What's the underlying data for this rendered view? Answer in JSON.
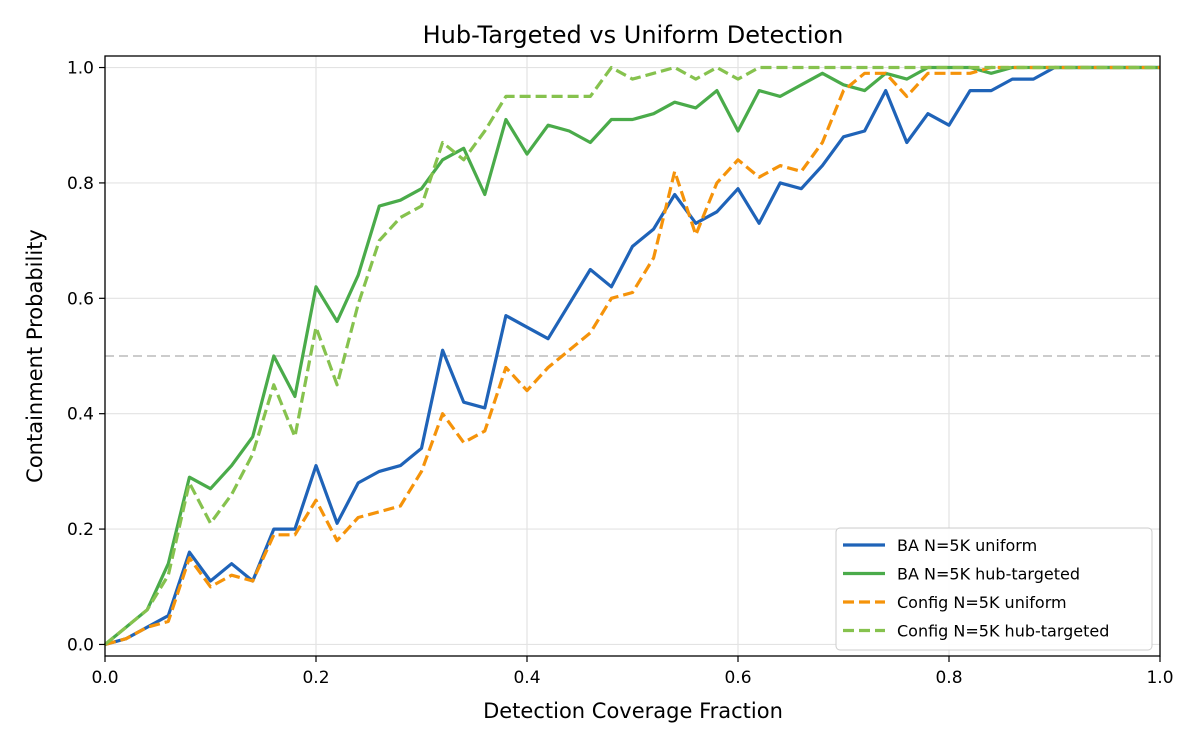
{
  "chart_data": {
    "type": "line",
    "title": "Hub-Targeted vs Uniform Detection",
    "xlabel": "Detection Coverage Fraction",
    "ylabel": "Containment Probability",
    "xlim": [
      0,
      1
    ],
    "ylim": [
      -0.02,
      1.02
    ],
    "xticks": [
      0.0,
      0.2,
      0.4,
      0.6,
      0.8,
      1.0
    ],
    "yticks": [
      0.0,
      0.2,
      0.4,
      0.6,
      0.8,
      1.0
    ],
    "xtick_labels": [
      "0.0",
      "0.2",
      "0.4",
      "0.6",
      "0.8",
      "1.0"
    ],
    "ytick_labels": [
      "0.0",
      "0.2",
      "0.4",
      "0.6",
      "0.8",
      "1.0"
    ],
    "grid": true,
    "legend_position": "bottom-right",
    "reference_line": {
      "y": 0.5,
      "color": "#cccccc",
      "style": "dashed"
    },
    "x": [
      0.0,
      0.02,
      0.04,
      0.06,
      0.08,
      0.1,
      0.12,
      0.14,
      0.16,
      0.18,
      0.2,
      0.22,
      0.24,
      0.26,
      0.28,
      0.3,
      0.32,
      0.34,
      0.36,
      0.38,
      0.4,
      0.42,
      0.44,
      0.46,
      0.48,
      0.5,
      0.52,
      0.54,
      0.56,
      0.58,
      0.6,
      0.62,
      0.64,
      0.66,
      0.68,
      0.7,
      0.72,
      0.74,
      0.76,
      0.78,
      0.8,
      0.82,
      0.84,
      0.86,
      0.88,
      0.9,
      0.92,
      0.94,
      0.96,
      0.98,
      1.0
    ],
    "series": [
      {
        "name": "BA N=5K uniform",
        "color": "#1f63b8",
        "style": "solid",
        "values": [
          0.0,
          0.01,
          0.03,
          0.05,
          0.16,
          0.11,
          0.14,
          0.11,
          0.2,
          0.2,
          0.31,
          0.21,
          0.28,
          0.3,
          0.31,
          0.34,
          0.51,
          0.42,
          0.41,
          0.57,
          0.55,
          0.53,
          0.59,
          0.65,
          0.62,
          0.69,
          0.72,
          0.78,
          0.73,
          0.75,
          0.79,
          0.73,
          0.8,
          0.79,
          0.83,
          0.88,
          0.89,
          0.96,
          0.87,
          0.92,
          0.9,
          0.96,
          0.96,
          0.98,
          0.98,
          1.0,
          1.0,
          1.0,
          1.0,
          1.0,
          1.0
        ]
      },
      {
        "name": "BA N=5K hub-targeted",
        "color": "#4aab4a",
        "style": "solid",
        "values": [
          0.0,
          0.03,
          0.06,
          0.14,
          0.29,
          0.27,
          0.31,
          0.36,
          0.5,
          0.43,
          0.62,
          0.56,
          0.64,
          0.76,
          0.77,
          0.79,
          0.84,
          0.86,
          0.78,
          0.91,
          0.85,
          0.9,
          0.89,
          0.87,
          0.91,
          0.91,
          0.92,
          0.94,
          0.93,
          0.96,
          0.89,
          0.96,
          0.95,
          0.97,
          0.99,
          0.97,
          0.96,
          0.99,
          0.98,
          1.0,
          1.0,
          1.0,
          0.99,
          1.0,
          1.0,
          1.0,
          1.0,
          1.0,
          1.0,
          1.0,
          1.0
        ]
      },
      {
        "name": "Config N=5K uniform",
        "color": "#f5930a",
        "style": "dashed",
        "values": [
          0.0,
          0.01,
          0.03,
          0.04,
          0.15,
          0.1,
          0.12,
          0.11,
          0.19,
          0.19,
          0.25,
          0.18,
          0.22,
          0.23,
          0.24,
          0.3,
          0.4,
          0.35,
          0.37,
          0.48,
          0.44,
          0.48,
          0.51,
          0.54,
          0.6,
          0.61,
          0.67,
          0.82,
          0.71,
          0.8,
          0.84,
          0.81,
          0.83,
          0.82,
          0.87,
          0.96,
          0.99,
          0.99,
          0.95,
          0.99,
          0.99,
          0.99,
          1.0,
          1.0,
          1.0,
          1.0,
          1.0,
          1.0,
          1.0,
          1.0,
          1.0
        ]
      },
      {
        "name": "Config N=5K hub-targeted",
        "color": "#86c24e",
        "style": "dashed",
        "values": [
          0.0,
          0.03,
          0.06,
          0.12,
          0.28,
          0.21,
          0.26,
          0.33,
          0.45,
          0.36,
          0.55,
          0.45,
          0.59,
          0.7,
          0.74,
          0.76,
          0.87,
          0.84,
          0.89,
          0.95,
          0.95,
          0.95,
          0.95,
          0.95,
          1.0,
          0.98,
          0.99,
          1.0,
          0.98,
          1.0,
          0.98,
          1.0,
          1.0,
          1.0,
          1.0,
          1.0,
          1.0,
          1.0,
          1.0,
          1.0,
          1.0,
          1.0,
          1.0,
          1.0,
          1.0,
          1.0,
          1.0,
          1.0,
          1.0,
          1.0,
          1.0
        ]
      }
    ]
  }
}
